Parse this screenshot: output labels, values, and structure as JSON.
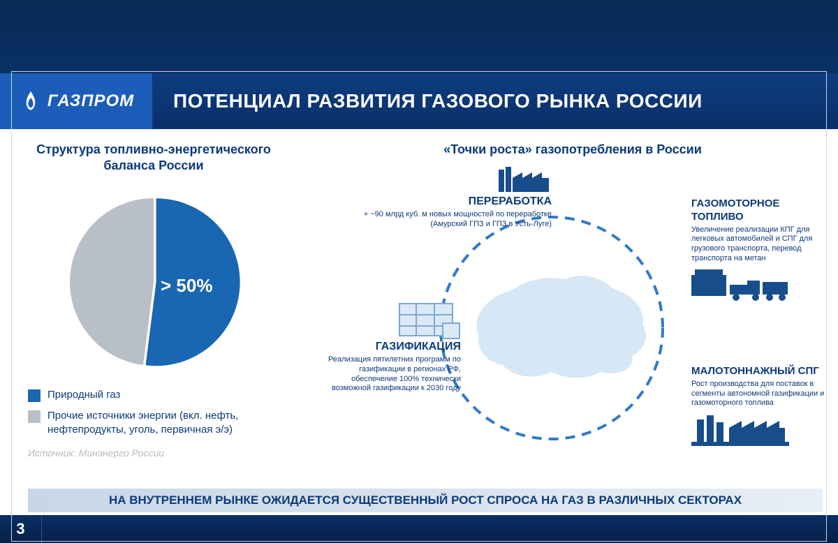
{
  "brand_text": "ГАЗПРОМ",
  "brand_color": "#1b5db8",
  "title": "ПОТЕНЦИАЛ РАЗВИТИЯ ГАЗОВОГО РЫНКА РОССИИ",
  "title_bg_from": "#0e3d80",
  "title_bg_to": "#0a2f68",
  "topband_from": "#0a2a55",
  "topband_to": "#093066",
  "page_number": "3",
  "left": {
    "subtitle_l1": "Структура топливно-энергетического",
    "subtitle_l2": "баланса России",
    "pie": {
      "type": "pie",
      "values": [
        52,
        48
      ],
      "labels": [
        "Природный газ",
        "Прочие источники энергии (вкл. нефть, нефтепродукты, уголь, первичная э/э)"
      ],
      "colors": [
        "#1966b2",
        "#b9bfc6"
      ],
      "center_label": "> 50%",
      "center_label_color": "#ffffff",
      "center_label_fontsize": 26,
      "radius": 120,
      "rotation_deg": -90,
      "explode": [
        0.03,
        0
      ]
    },
    "legend": {
      "item1_color": "#1966b2",
      "item1_text": "Природный газ",
      "item2_color": "#b9bfc6",
      "item2_text": "Прочие источники энергии (вкл. нефть, нефтепродукты, уголь, первичная э/э)"
    },
    "source": "Источник: Минэнерго России"
  },
  "right": {
    "subtitle": "«Точки роста» газопотребления в России",
    "ring": {
      "diameter": 330,
      "stroke_color": "#2f79c9",
      "stroke_width": 4,
      "dash": "14 10",
      "map_fill": "#cfe4f5"
    },
    "nodes": {
      "processing": {
        "title": "ПЕРЕРАБОТКА",
        "desc": "+ ~90 млрд куб. м новых мощностей по переработке (Амурский ГПЗ и ГПЗ в Усть-Луге)",
        "icon_color": "#184d8c"
      },
      "motor_fuel": {
        "title": "ГАЗОМОТОРНОЕ ТОПЛИВО",
        "desc": "Увеличение реализации КПГ для легковых автомобилей и СПГ для грузового транспорта, перевод транспорта на метан",
        "icon_color": "#184d8c"
      },
      "gasification": {
        "title": "ГАЗИФИКАЦИЯ",
        "desc": "Реализация пятилетних программ по газификации в регионах РФ, обеспечение 100% технически возможной газификации к 2030 году",
        "icon_color": "#184d8c"
      },
      "small_lng": {
        "title": "МАЛОТОННАЖНЫЙ СПГ",
        "desc": "Рост производства для поставок в сегменты автономной газификации и газомоторного топлива",
        "icon_color": "#184d8c"
      }
    }
  },
  "conclusion": "НА ВНУТРЕННЕМ РЫНКЕ ОЖИДАЕТСЯ СУЩЕСТВЕННЫЙ РОСТ СПРОСА НА ГАЗ В РАЗЛИЧНЫХ СЕКТОРАХ",
  "conclusion_bg_from": "#c8d6e6",
  "conclusion_bg_to": "#e8eef6",
  "text_primary": "#0b3a7a"
}
